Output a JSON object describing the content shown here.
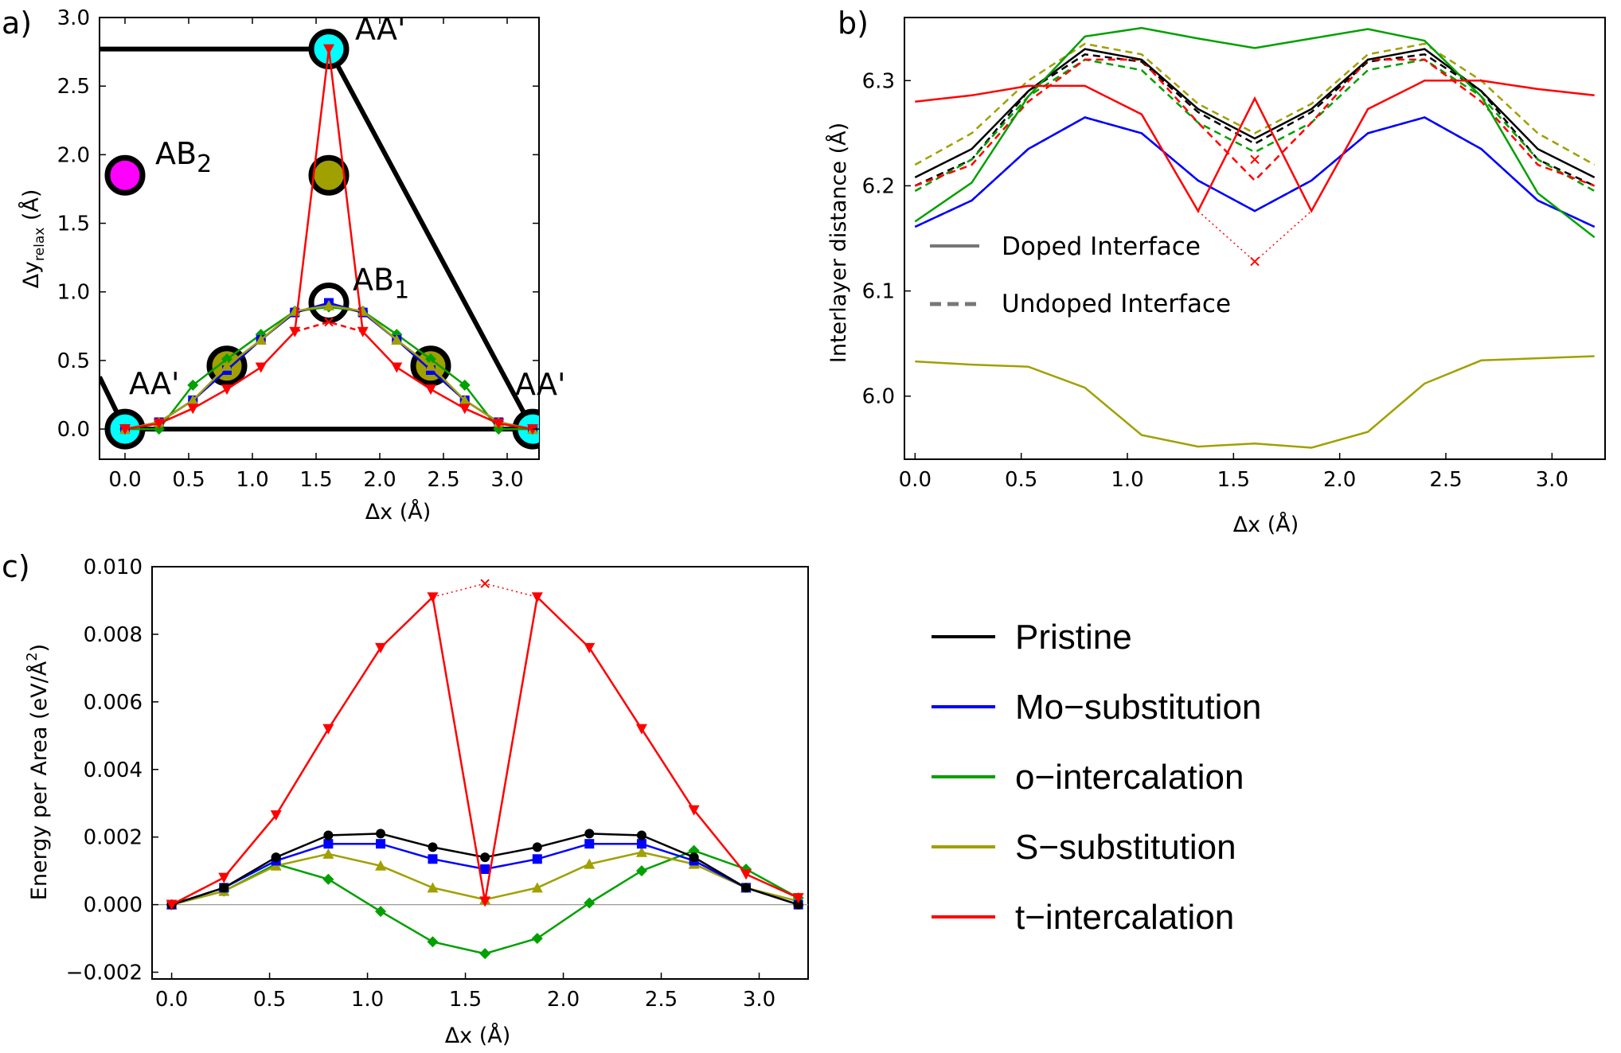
{
  "colors": {
    "Pristine": "#000000",
    "Mo-substitution": "#0000ff",
    "o-intercalation": "#00a000",
    "S-substitution": "#a0a000",
    "t-intercalation": "#ff0000",
    "aa_site": "#00ffff",
    "ab1_site": "#ffffff",
    "ab2_site": "#ff00ff",
    "s_site": "#a0a000"
  },
  "legend": {
    "entries": [
      "Pristine",
      "Mo−substitution",
      "o−intercalation",
      "S−substitution",
      "t−intercalation"
    ]
  },
  "chart_data": [
    {
      "panel": "a)",
      "type": "scatter",
      "xlabel": "Δx (Å)",
      "ylabel_main": "Δy",
      "ylabel_sub": "relax",
      "ylabel_unit": " (Å)",
      "xlim": [
        -0.2,
        3.25
      ],
      "ylim": [
        -0.22,
        3.0
      ],
      "xticks": [
        "0.0",
        "0.5",
        "1.0",
        "1.5",
        "2.0",
        "2.5",
        "3.0"
      ],
      "xtick_values": [
        0,
        0.5,
        1.0,
        1.5,
        2.0,
        2.5,
        3.0
      ],
      "yticks": [
        "0.0",
        "0.5",
        "1.0",
        "1.5",
        "2.0",
        "2.5",
        "3.0"
      ],
      "ytick_values": [
        0,
        0.5,
        1.0,
        1.5,
        2.0,
        2.5,
        3.0
      ],
      "boundary": [
        [
          -0.2,
          0.38
        ],
        [
          0.0,
          0.0
        ],
        [
          3.2,
          0.0
        ],
        [
          1.6,
          2.77
        ],
        [
          -0.2,
          2.77
        ]
      ],
      "site_labels": [
        {
          "text": "AA'",
          "x": 0.0,
          "y": 0.0
        },
        {
          "text": "AA'",
          "x": 1.6,
          "y": 2.77
        },
        {
          "text": "AA'",
          "x": 3.2,
          "y": 0.0
        },
        {
          "text": "AB",
          "sub": "1",
          "x": 1.6,
          "y": 0.92
        },
        {
          "text": "AB",
          "sub": "2",
          "x": 0.0,
          "y": 1.85
        }
      ],
      "sites": [
        {
          "type": "AA",
          "x": 0.0,
          "y": 0.0
        },
        {
          "type": "AA",
          "x": 1.6,
          "y": 2.77
        },
        {
          "type": "AA",
          "x": 3.2,
          "y": 0.0
        },
        {
          "type": "AB1",
          "x": 1.6,
          "y": 0.92
        },
        {
          "type": "AB2",
          "x": 0.0,
          "y": 1.85
        },
        {
          "type": "S",
          "x": 0.8,
          "y": 0.46
        },
        {
          "type": "S",
          "x": 2.4,
          "y": 0.46
        },
        {
          "type": "S",
          "x": 1.6,
          "y": 1.85
        }
      ],
      "x": [
        0.0,
        0.267,
        0.533,
        0.8,
        1.067,
        1.333,
        1.6,
        1.867,
        2.133,
        2.4,
        2.667,
        2.933,
        3.2
      ],
      "series": [
        {
          "name": "Pristine",
          "values": [
            0.0,
            0.05,
            0.21,
            0.43,
            0.65,
            0.85,
            0.91,
            0.85,
            0.65,
            0.43,
            0.21,
            0.05,
            0.0
          ]
        },
        {
          "name": "Mo-substitution",
          "values": [
            0.0,
            0.05,
            0.21,
            0.43,
            0.65,
            0.85,
            0.92,
            0.85,
            0.65,
            0.43,
            0.21,
            0.05,
            0.0
          ]
        },
        {
          "name": "o-intercalation",
          "values": [
            0.0,
            0.0,
            0.32,
            0.51,
            0.69,
            0.86,
            0.89,
            0.86,
            0.69,
            0.51,
            0.32,
            0.0,
            0.0
          ]
        },
        {
          "name": "S-substitution",
          "values": [
            0.0,
            0.05,
            0.21,
            0.46,
            0.65,
            0.86,
            0.9,
            0.86,
            0.65,
            0.46,
            0.21,
            0.05,
            0.0
          ]
        },
        {
          "name": "t-intercalation",
          "values": [
            0.0,
            0.04,
            0.15,
            0.29,
            0.45,
            0.71,
            2.77,
            0.71,
            0.45,
            0.29,
            0.15,
            0.04,
            0.0
          ]
        }
      ],
      "t_dashed": {
        "x": [
          1.333,
          1.6,
          1.867
        ],
        "values": [
          0.71,
          0.78,
          0.71
        ]
      }
    },
    {
      "panel": "b)",
      "type": "line",
      "xlabel": "Δx (Å)",
      "ylabel": "Interlayer distance (Å)",
      "xlim": [
        -0.05,
        3.25
      ],
      "ylim": [
        5.94,
        6.36
      ],
      "xticks": [
        "0.0",
        "0.5",
        "1.0",
        "1.5",
        "2.0",
        "2.5",
        "3.0"
      ],
      "xtick_values": [
        0,
        0.5,
        1.0,
        1.5,
        2.0,
        2.5,
        3.0
      ],
      "yticks": [
        "6.0",
        "6.1",
        "6.2",
        "6.3"
      ],
      "ytick_values": [
        6.0,
        6.1,
        6.2,
        6.3
      ],
      "inner_legend": [
        "Doped Interface",
        "Undoped Interface"
      ],
      "x": [
        0.0,
        0.267,
        0.533,
        0.8,
        1.067,
        1.333,
        1.6,
        1.867,
        2.133,
        2.4,
        2.667,
        2.933,
        3.2
      ],
      "doped": [
        {
          "name": "Pristine",
          "values": [
            6.208,
            6.235,
            6.29,
            6.33,
            6.32,
            6.273,
            6.245,
            6.273,
            6.32,
            6.33,
            6.29,
            6.235,
            6.208
          ]
        },
        {
          "name": "Mo-substitution",
          "values": [
            6.161,
            6.186,
            6.235,
            6.265,
            6.25,
            6.205,
            6.176,
            6.205,
            6.25,
            6.265,
            6.235,
            6.186,
            6.161
          ]
        },
        {
          "name": "o-intercalation",
          "values": [
            6.166,
            6.203,
            6.285,
            6.342,
            6.35,
            6.34,
            6.331,
            6.34,
            6.349,
            6.338,
            6.285,
            6.193,
            6.151
          ]
        },
        {
          "name": "S-substitution",
          "values": [
            6.033,
            6.03,
            6.028,
            6.008,
            5.963,
            5.952,
            5.955,
            5.951,
            5.966,
            6.012,
            6.034,
            6.036,
            6.038
          ]
        },
        {
          "name": "t-intercalation",
          "values": [
            6.28,
            6.286,
            6.295,
            6.295,
            6.268,
            6.176,
            6.283,
            6.176,
            6.273,
            6.3,
            6.3,
            6.292,
            6.286
          ]
        }
      ],
      "undoped": [
        {
          "name": "Pristine",
          "values": [
            6.2,
            6.225,
            6.29,
            6.325,
            6.318,
            6.27,
            6.24,
            6.27,
            6.318,
            6.325,
            6.29,
            6.225,
            6.2
          ]
        },
        {
          "name": "Mo-substitution",
          "values": [
            6.161,
            6.186,
            6.235,
            6.265,
            6.25,
            6.205,
            6.176,
            6.205,
            6.25,
            6.265,
            6.235,
            6.186,
            6.161
          ]
        },
        {
          "name": "o-intercalation",
          "values": [
            6.195,
            6.225,
            6.285,
            6.32,
            6.31,
            6.26,
            6.232,
            6.26,
            6.31,
            6.32,
            6.285,
            6.225,
            6.195
          ]
        },
        {
          "name": "S-substitution",
          "values": [
            6.22,
            6.25,
            6.3,
            6.335,
            6.325,
            6.278,
            6.25,
            6.278,
            6.325,
            6.335,
            6.3,
            6.25,
            6.22
          ]
        },
        {
          "name": "t-intercalation",
          "values": [
            6.2,
            6.22,
            6.28,
            6.32,
            6.32,
            6.26,
            6.205,
            6.26,
            6.32,
            6.32,
            6.28,
            6.22,
            6.2
          ]
        }
      ],
      "t_dotted": {
        "x": [
          1.333,
          1.6,
          1.867
        ],
        "values": [
          6.176,
          6.128,
          6.176
        ]
      },
      "markers": [
        {
          "x": 1.6,
          "y": 6.128
        },
        {
          "x": 1.6,
          "y": 6.225
        }
      ]
    },
    {
      "panel": "c)",
      "type": "line",
      "xlabel": "Δx (Å)",
      "ylabel_main": "Energy per Area (eV/Å",
      "ylabel_sup": "2",
      "ylabel_end": ")",
      "xlim": [
        -0.1,
        3.25
      ],
      "ylim": [
        -0.0022,
        0.01
      ],
      "xticks": [
        "0.0",
        "0.5",
        "1.0",
        "1.5",
        "2.0",
        "2.5",
        "3.0"
      ],
      "xtick_values": [
        0,
        0.5,
        1.0,
        1.5,
        2.0,
        2.5,
        3.0
      ],
      "yticks": [
        "−0.002",
        "0.000",
        "0.002",
        "0.004",
        "0.006",
        "0.008",
        "0.010"
      ],
      "ytick_values": [
        -0.002,
        0.0,
        0.002,
        0.004,
        0.006,
        0.008,
        0.01
      ],
      "x": [
        0.0,
        0.267,
        0.533,
        0.8,
        1.067,
        1.333,
        1.6,
        1.867,
        2.133,
        2.4,
        2.667,
        2.933,
        3.2
      ],
      "series": [
        {
          "name": "Pristine",
          "marker": "circle",
          "values": [
            0.0,
            0.0005,
            0.0014,
            0.00205,
            0.0021,
            0.0017,
            0.0014,
            0.0017,
            0.0021,
            0.00205,
            0.0014,
            0.0005,
            0.0
          ]
        },
        {
          "name": "Mo-substitution",
          "marker": "square",
          "values": [
            0.0,
            0.0005,
            0.0013,
            0.0018,
            0.0018,
            0.00135,
            0.00105,
            0.00135,
            0.0018,
            0.0018,
            0.0013,
            0.0005,
            0.0
          ]
        },
        {
          "name": "o-intercalation",
          "marker": "diamond",
          "values": [
            0.0,
            0.0004,
            0.0012,
            0.00075,
            -0.0002,
            -0.0011,
            -0.00145,
            -0.001,
            5e-05,
            0.001,
            0.0016,
            0.00105,
            0.0002
          ]
        },
        {
          "name": "S-substitution",
          "marker": "triangle",
          "values": [
            0.0,
            0.0004,
            0.00115,
            0.0015,
            0.00115,
            0.0005,
            0.00015,
            0.0005,
            0.0012,
            0.00155,
            0.0012,
            0.0005,
            0.0001
          ]
        },
        {
          "name": "t-intercalation",
          "marker": "triangle-down",
          "values": [
            0.0,
            0.0008,
            0.00265,
            0.0052,
            0.0076,
            0.0091,
            0.0001,
            0.0091,
            0.0076,
            0.0052,
            0.0028,
            0.0009,
            0.0002
          ]
        }
      ],
      "t_dotted": {
        "x": [
          1.333,
          1.6,
          1.867
        ],
        "values": [
          0.0091,
          0.0095,
          0.0091
        ]
      },
      "marker_x": {
        "x": 1.6,
        "y": 0.0095
      }
    }
  ]
}
